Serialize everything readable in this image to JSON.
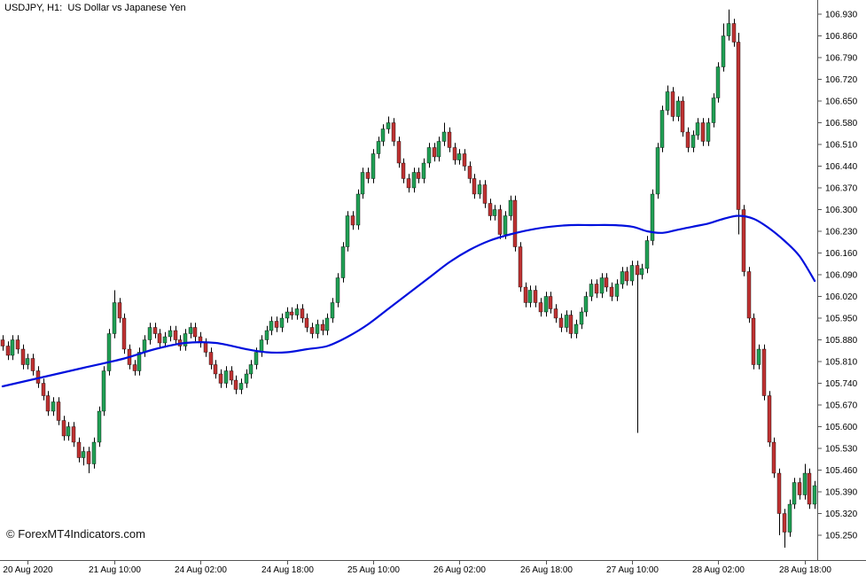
{
  "header": {
    "title": "USDJPY, H1:  US Dollar vs Japanese Yen"
  },
  "watermark": {
    "text": "© ForexMT4Indicators.com"
  },
  "chart_data": {
    "type": "candlestick",
    "symbol": "USDJPY",
    "timeframe": "H1",
    "description": "US Dollar vs Japanese Yen",
    "price_axis": {
      "max": 106.93,
      "min": 105.25,
      "step": 0.07,
      "ticks": [
        "106.930",
        "106.860",
        "106.790",
        "106.720",
        "106.650",
        "106.580",
        "106.510",
        "106.440",
        "106.370",
        "106.300",
        "106.230",
        "106.160",
        "106.090",
        "106.020",
        "105.950",
        "105.880",
        "105.810",
        "105.740",
        "105.670",
        "105.600",
        "105.530",
        "105.460",
        "105.390",
        "105.320",
        "105.250"
      ]
    },
    "time_axis": {
      "labels": [
        {
          "text": "20 Aug 2020",
          "index": 5
        },
        {
          "text": "21 Aug 10:00",
          "index": 22
        },
        {
          "text": "24 Aug 02:00",
          "index": 39
        },
        {
          "text": "24 Aug 18:00",
          "index": 56
        },
        {
          "text": "25 Aug 10:00",
          "index": 73
        },
        {
          "text": "26 Aug 02:00",
          "index": 90
        },
        {
          "text": "26 Aug 18:00",
          "index": 107
        },
        {
          "text": "27 Aug 10:00",
          "index": 124
        },
        {
          "text": "28 Aug 02:00",
          "index": 141
        },
        {
          "text": "28 Aug 18:00",
          "index": 158
        }
      ]
    },
    "candles_format": [
      "open",
      "high",
      "low",
      "close"
    ],
    "candles": [
      [
        105.88,
        105.895,
        105.845,
        105.86
      ],
      [
        105.86,
        105.875,
        105.815,
        105.83
      ],
      [
        105.83,
        105.895,
        105.815,
        105.88
      ],
      [
        105.88,
        105.895,
        105.835,
        105.85
      ],
      [
        105.85,
        105.865,
        105.785,
        105.8
      ],
      [
        105.8,
        105.835,
        105.785,
        105.82
      ],
      [
        105.82,
        105.835,
        105.765,
        105.78
      ],
      [
        105.78,
        105.795,
        105.725,
        105.74
      ],
      [
        105.74,
        105.755,
        105.685,
        105.7
      ],
      [
        105.7,
        105.715,
        105.635,
        105.65
      ],
      [
        105.65,
        105.695,
        105.635,
        105.68
      ],
      [
        105.68,
        105.695,
        105.605,
        105.62
      ],
      [
        105.62,
        105.635,
        105.555,
        105.57
      ],
      [
        105.57,
        105.615,
        105.555,
        105.6
      ],
      [
        105.6,
        105.615,
        105.535,
        105.55
      ],
      [
        105.55,
        105.565,
        105.485,
        105.5
      ],
      [
        105.5,
        105.535,
        105.475,
        105.52
      ],
      [
        105.52,
        105.535,
        105.45,
        105.48
      ],
      [
        105.48,
        105.565,
        105.465,
        105.55
      ],
      [
        105.55,
        105.665,
        105.535,
        105.65
      ],
      [
        105.65,
        105.795,
        105.635,
        105.78
      ],
      [
        105.78,
        105.915,
        105.765,
        105.9
      ],
      [
        105.9,
        106.04,
        105.885,
        106.0
      ],
      [
        106.0,
        106.015,
        105.935,
        105.95
      ],
      [
        105.95,
        105.965,
        105.835,
        105.85
      ],
      [
        105.85,
        105.865,
        105.785,
        105.8
      ],
      [
        105.8,
        105.815,
        105.765,
        105.78
      ],
      [
        105.78,
        105.855,
        105.765,
        105.84
      ],
      [
        105.84,
        105.895,
        105.825,
        105.88
      ],
      [
        105.88,
        105.935,
        105.865,
        105.92
      ],
      [
        105.92,
        105.935,
        105.885,
        105.9
      ],
      [
        105.9,
        105.915,
        105.855,
        105.87
      ],
      [
        105.87,
        105.905,
        105.855,
        105.89
      ],
      [
        105.89,
        105.925,
        105.875,
        105.91
      ],
      [
        105.91,
        105.925,
        105.865,
        105.88
      ],
      [
        105.88,
        105.895,
        105.845,
        105.86
      ],
      [
        105.86,
        105.915,
        105.845,
        105.9
      ],
      [
        105.9,
        105.935,
        105.885,
        105.92
      ],
      [
        105.92,
        105.935,
        105.875,
        105.89
      ],
      [
        105.89,
        105.905,
        105.855,
        105.87
      ],
      [
        105.87,
        105.885,
        105.825,
        105.84
      ],
      [
        105.84,
        105.855,
        105.785,
        105.8
      ],
      [
        105.8,
        105.815,
        105.755,
        105.77
      ],
      [
        105.77,
        105.785,
        105.725,
        105.74
      ],
      [
        105.74,
        105.795,
        105.725,
        105.78
      ],
      [
        105.78,
        105.795,
        105.735,
        105.75
      ],
      [
        105.75,
        105.765,
        105.705,
        105.72
      ],
      [
        105.72,
        105.755,
        105.705,
        105.74
      ],
      [
        105.74,
        105.785,
        105.725,
        105.77
      ],
      [
        105.77,
        105.815,
        105.755,
        105.8
      ],
      [
        105.8,
        105.855,
        105.785,
        105.84
      ],
      [
        105.84,
        105.895,
        105.825,
        105.88
      ],
      [
        105.88,
        105.925,
        105.865,
        105.91
      ],
      [
        105.91,
        105.955,
        105.895,
        105.94
      ],
      [
        105.94,
        105.955,
        105.905,
        105.92
      ],
      [
        105.92,
        105.965,
        105.905,
        105.95
      ],
      [
        105.95,
        105.985,
        105.935,
        105.97
      ],
      [
        105.97,
        105.985,
        105.945,
        105.96
      ],
      [
        105.96,
        105.995,
        105.945,
        105.98
      ],
      [
        105.98,
        105.995,
        105.935,
        105.95
      ],
      [
        105.95,
        105.965,
        105.905,
        105.92
      ],
      [
        105.92,
        105.935,
        105.885,
        105.9
      ],
      [
        105.9,
        105.945,
        105.885,
        105.93
      ],
      [
        105.93,
        105.945,
        105.895,
        105.91
      ],
      [
        105.91,
        105.965,
        105.895,
        105.95
      ],
      [
        105.95,
        106.015,
        105.935,
        106.0
      ],
      [
        106.0,
        106.095,
        105.985,
        106.08
      ],
      [
        106.08,
        106.195,
        106.065,
        106.18
      ],
      [
        106.18,
        106.295,
        106.165,
        106.28
      ],
      [
        106.28,
        106.295,
        106.235,
        106.25
      ],
      [
        106.25,
        106.365,
        106.235,
        106.35
      ],
      [
        106.35,
        106.435,
        106.335,
        106.42
      ],
      [
        106.42,
        106.435,
        106.385,
        106.4
      ],
      [
        106.4,
        106.495,
        106.385,
        106.48
      ],
      [
        106.48,
        106.535,
        106.465,
        106.52
      ],
      [
        106.52,
        106.575,
        106.505,
        106.56
      ],
      [
        106.56,
        106.6,
        106.545,
        106.58
      ],
      [
        106.58,
        106.595,
        106.505,
        106.52
      ],
      [
        106.52,
        106.535,
        106.435,
        106.45
      ],
      [
        106.45,
        106.465,
        106.385,
        106.4
      ],
      [
        106.4,
        106.415,
        106.355,
        106.37
      ],
      [
        106.37,
        106.435,
        106.355,
        106.42
      ],
      [
        106.42,
        106.435,
        106.385,
        106.4
      ],
      [
        106.4,
        106.465,
        106.385,
        106.45
      ],
      [
        106.45,
        106.515,
        106.435,
        106.5
      ],
      [
        106.5,
        106.515,
        106.455,
        106.47
      ],
      [
        106.47,
        106.535,
        106.455,
        106.52
      ],
      [
        106.52,
        106.58,
        106.505,
        106.55
      ],
      [
        106.55,
        106.565,
        106.485,
        106.5
      ],
      [
        106.5,
        106.515,
        106.445,
        106.46
      ],
      [
        106.46,
        106.495,
        106.445,
        106.48
      ],
      [
        106.48,
        106.495,
        106.425,
        106.44
      ],
      [
        106.44,
        106.455,
        106.385,
        106.4
      ],
      [
        106.4,
        106.415,
        106.335,
        106.35
      ],
      [
        106.35,
        106.395,
        106.335,
        106.38
      ],
      [
        106.38,
        106.395,
        106.305,
        106.32
      ],
      [
        106.32,
        106.335,
        106.265,
        106.28
      ],
      [
        106.28,
        106.315,
        106.265,
        106.3
      ],
      [
        106.3,
        106.315,
        106.205,
        106.22
      ],
      [
        106.22,
        106.295,
        106.205,
        106.28
      ],
      [
        106.28,
        106.345,
        106.265,
        106.33
      ],
      [
        106.33,
        106.345,
        106.165,
        106.18
      ],
      [
        106.18,
        106.195,
        106.035,
        106.05
      ],
      [
        106.05,
        106.065,
        105.985,
        106.0
      ],
      [
        106.0,
        106.055,
        105.985,
        106.04
      ],
      [
        106.04,
        106.055,
        105.985,
        106.0
      ],
      [
        106.0,
        106.015,
        105.955,
        105.97
      ],
      [
        105.97,
        106.035,
        105.955,
        106.02
      ],
      [
        106.02,
        106.035,
        105.965,
        105.98
      ],
      [
        105.98,
        105.995,
        105.935,
        105.95
      ],
      [
        105.95,
        105.965,
        105.905,
        105.92
      ],
      [
        105.92,
        105.975,
        105.905,
        105.96
      ],
      [
        105.96,
        105.975,
        105.885,
        105.9
      ],
      [
        105.9,
        105.945,
        105.885,
        105.93
      ],
      [
        105.93,
        105.985,
        105.915,
        105.97
      ],
      [
        105.97,
        106.035,
        105.955,
        106.02
      ],
      [
        106.02,
        106.075,
        106.005,
        106.06
      ],
      [
        106.06,
        106.075,
        106.015,
        106.03
      ],
      [
        106.03,
        106.095,
        106.015,
        106.08
      ],
      [
        106.08,
        106.095,
        106.035,
        106.05
      ],
      [
        106.05,
        106.065,
        106.005,
        106.02
      ],
      [
        106.02,
        106.075,
        106.005,
        106.06
      ],
      [
        106.06,
        106.115,
        106.045,
        106.1
      ],
      [
        106.1,
        106.115,
        106.055,
        106.07
      ],
      [
        106.07,
        106.135,
        106.055,
        106.12
      ],
      [
        106.12,
        106.135,
        105.58,
        106.09
      ],
      [
        106.09,
        106.125,
        106.075,
        106.11
      ],
      [
        106.11,
        106.215,
        106.095,
        106.2
      ],
      [
        106.2,
        106.365,
        106.185,
        106.35
      ],
      [
        106.35,
        106.515,
        106.335,
        106.5
      ],
      [
        106.5,
        106.635,
        106.485,
        106.62
      ],
      [
        106.62,
        106.7,
        106.605,
        106.68
      ],
      [
        106.68,
        106.695,
        106.585,
        106.6
      ],
      [
        106.6,
        106.665,
        106.585,
        106.65
      ],
      [
        106.65,
        106.665,
        106.535,
        106.55
      ],
      [
        106.55,
        106.565,
        106.485,
        106.5
      ],
      [
        106.5,
        106.555,
        106.485,
        106.54
      ],
      [
        106.54,
        106.595,
        106.525,
        106.58
      ],
      [
        106.58,
        106.595,
        106.505,
        106.52
      ],
      [
        106.52,
        106.595,
        106.505,
        106.58
      ],
      [
        106.58,
        106.675,
        106.565,
        106.66
      ],
      [
        106.66,
        106.775,
        106.645,
        106.76
      ],
      [
        106.76,
        106.9,
        106.745,
        106.86
      ],
      [
        106.86,
        106.945,
        106.845,
        106.9
      ],
      [
        106.9,
        106.915,
        106.825,
        106.84
      ],
      [
        106.84,
        106.87,
        106.22,
        106.3
      ],
      [
        106.3,
        106.315,
        106.085,
        106.1
      ],
      [
        106.1,
        106.115,
        105.935,
        105.95
      ],
      [
        105.95,
        105.965,
        105.785,
        105.8
      ],
      [
        105.8,
        105.865,
        105.785,
        105.85
      ],
      [
        105.85,
        105.865,
        105.685,
        105.7
      ],
      [
        105.7,
        105.715,
        105.535,
        105.55
      ],
      [
        105.55,
        105.565,
        105.435,
        105.45
      ],
      [
        105.45,
        105.465,
        105.25,
        105.32
      ],
      [
        105.32,
        105.335,
        105.21,
        105.26
      ],
      [
        105.26,
        105.365,
        105.245,
        105.35
      ],
      [
        105.35,
        105.435,
        105.335,
        105.42
      ],
      [
        105.42,
        105.435,
        105.365,
        105.38
      ],
      [
        105.38,
        105.48,
        105.365,
        105.45
      ],
      [
        105.45,
        105.465,
        105.335,
        105.35
      ],
      [
        105.35,
        105.425,
        105.335,
        105.41
      ]
    ],
    "overlay_ma": {
      "label": "moving-average",
      "color": "#0010dd",
      "points": [
        [
          0,
          105.73
        ],
        [
          8,
          105.76
        ],
        [
          16,
          105.79
        ],
        [
          24,
          105.82
        ],
        [
          30,
          105.85
        ],
        [
          36,
          105.87
        ],
        [
          42,
          105.87
        ],
        [
          48,
          105.85
        ],
        [
          52,
          105.84
        ],
        [
          56,
          105.84
        ],
        [
          60,
          105.85
        ],
        [
          64,
          105.86
        ],
        [
          68,
          105.89
        ],
        [
          72,
          105.93
        ],
        [
          76,
          105.98
        ],
        [
          80,
          106.03
        ],
        [
          84,
          106.08
        ],
        [
          88,
          106.13
        ],
        [
          92,
          106.17
        ],
        [
          96,
          106.2
        ],
        [
          100,
          106.22
        ],
        [
          104,
          106.235
        ],
        [
          108,
          106.245
        ],
        [
          112,
          106.25
        ],
        [
          116,
          106.25
        ],
        [
          120,
          106.25
        ],
        [
          124,
          106.245
        ],
        [
          127,
          106.23
        ],
        [
          130,
          106.225
        ],
        [
          133,
          106.235
        ],
        [
          136,
          106.245
        ],
        [
          139,
          106.255
        ],
        [
          142,
          106.27
        ],
        [
          145,
          106.28
        ],
        [
          148,
          106.27
        ],
        [
          151,
          106.24
        ],
        [
          154,
          106.2
        ],
        [
          157,
          106.15
        ],
        [
          160,
          106.07
        ]
      ]
    },
    "colors": {
      "up": "#21a055",
      "down": "#bf3232",
      "wick": "#000000",
      "outline": "#000000",
      "background": "#ffffff",
      "axis_line": "#555555",
      "text": "#000000"
    }
  }
}
